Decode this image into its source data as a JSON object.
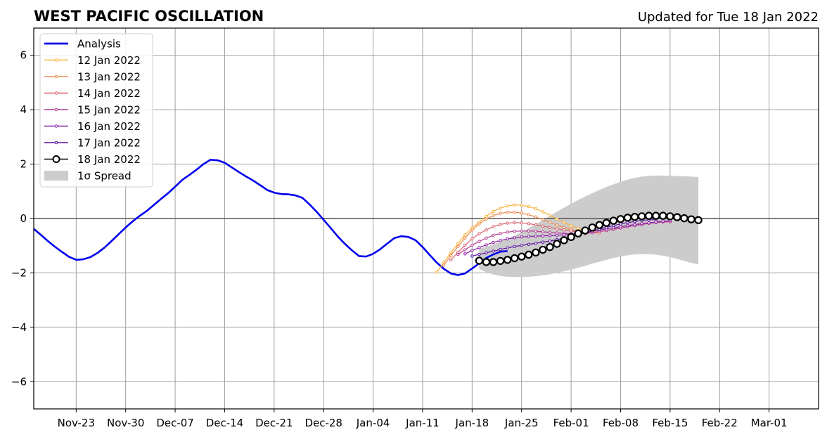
{
  "header": {
    "title": "WEST PACIFIC OSCILLATION",
    "updated": "Updated for Tue 18 Jan 2022"
  },
  "chart_data": {
    "type": "line",
    "title": "WEST PACIFIC OSCILLATION",
    "subtitle": "Updated for Tue 18 Jan 2022",
    "x_unit": "date",
    "xlim": [
      "2021-11-17",
      "2022-03-08"
    ],
    "ylim": [
      -7,
      7
    ],
    "grid": true,
    "legend_position": "top-left",
    "x_ticks": [
      {
        "date": "2021-11-23",
        "label": "Nov-23"
      },
      {
        "date": "2021-11-30",
        "label": "Nov-30"
      },
      {
        "date": "2021-12-07",
        "label": "Dec-07"
      },
      {
        "date": "2021-12-14",
        "label": "Dec-14"
      },
      {
        "date": "2021-12-21",
        "label": "Dec-21"
      },
      {
        "date": "2021-12-28",
        "label": "Dec-28"
      },
      {
        "date": "2022-01-04",
        "label": "Jan-04"
      },
      {
        "date": "2022-01-11",
        "label": "Jan-11"
      },
      {
        "date": "2022-01-18",
        "label": "Jan-18"
      },
      {
        "date": "2022-01-25",
        "label": "Jan-25"
      },
      {
        "date": "2022-02-01",
        "label": "Feb-01"
      },
      {
        "date": "2022-02-08",
        "label": "Feb-08"
      },
      {
        "date": "2022-02-15",
        "label": "Feb-15"
      },
      {
        "date": "2022-02-22",
        "label": "Feb-22"
      },
      {
        "date": "2022-03-01",
        "label": "Mar-01"
      }
    ],
    "y_ticks": [
      {
        "value": 6,
        "label": "6"
      },
      {
        "value": 4,
        "label": "4"
      },
      {
        "value": 2,
        "label": "2"
      },
      {
        "value": 0,
        "label": "0"
      },
      {
        "value": -2,
        "label": "−2"
      },
      {
        "value": -4,
        "label": "−4"
      },
      {
        "value": -6,
        "label": "−6"
      }
    ],
    "analysis": {
      "name": "Analysis",
      "color": "#0000ee",
      "start": "2021-11-17",
      "values": [
        -0.38,
        -0.6,
        -0.83,
        -1.04,
        -1.23,
        -1.41,
        -1.52,
        -1.5,
        -1.42,
        -1.27,
        -1.07,
        -0.83,
        -0.58,
        -0.33,
        -0.1,
        0.1,
        0.28,
        0.5,
        0.72,
        0.93,
        1.17,
        1.42,
        1.6,
        1.79,
        2.0,
        2.16,
        2.14,
        2.05,
        1.88,
        1.71,
        1.55,
        1.4,
        1.23,
        1.05,
        0.95,
        0.9,
        0.89,
        0.85,
        0.76,
        0.52,
        0.25,
        -0.05,
        -0.35,
        -0.66,
        -0.93,
        -1.17,
        -1.38,
        -1.4,
        -1.3,
        -1.13,
        -0.92,
        -0.72,
        -0.65,
        -0.68,
        -0.8,
        -1.05,
        -1.34,
        -1.62,
        -1.85,
        -2.02,
        -2.08,
        -2.02,
        -1.84,
        -1.65,
        -1.45,
        -1.32,
        -1.22,
        -1.2
      ]
    },
    "forecasts": [
      {
        "name": "12 Jan 2022",
        "color": "#f9b13b",
        "start": "2022-01-13",
        "values": [
          -1.97,
          -1.62,
          -1.25,
          -0.92,
          -0.6,
          -0.35,
          -0.13,
          0.08,
          0.26,
          0.38,
          0.46,
          0.5,
          0.49,
          0.44,
          0.36,
          0.25,
          0.12,
          -0.02,
          -0.15,
          -0.27,
          -0.36,
          -0.43,
          -0.48,
          -0.5
        ]
      },
      {
        "name": "13 Jan 2022",
        "color": "#ed8a4e",
        "start": "2022-01-14",
        "values": [
          -1.72,
          -1.36,
          -1.03,
          -0.72,
          -0.43,
          -0.2,
          -0.02,
          0.11,
          0.19,
          0.23,
          0.23,
          0.2,
          0.14,
          0.06,
          -0.04,
          -0.14,
          -0.24,
          -0.33,
          -0.4,
          -0.46,
          -0.5,
          -0.52,
          -0.53
        ]
      },
      {
        "name": "14 Jan 2022",
        "color": "#d96069",
        "start": "2022-01-15",
        "values": [
          -1.52,
          -1.24,
          -0.98,
          -0.75,
          -0.56,
          -0.42,
          -0.3,
          -0.22,
          -0.17,
          -0.15,
          -0.16,
          -0.19,
          -0.23,
          -0.28,
          -0.33,
          -0.38,
          -0.42,
          -0.46,
          -0.49,
          -0.5,
          -0.5,
          -0.48,
          -0.44,
          -0.4,
          -0.35
        ]
      },
      {
        "name": "15 Jan 2022",
        "color": "#b43c91",
        "start": "2022-01-16",
        "values": [
          -1.32,
          -1.15,
          -0.98,
          -0.84,
          -0.72,
          -0.62,
          -0.55,
          -0.5,
          -0.47,
          -0.46,
          -0.46,
          -0.47,
          -0.49,
          -0.51,
          -0.53,
          -0.55,
          -0.56,
          -0.56,
          -0.55,
          -0.52,
          -0.48,
          -0.44,
          -0.39,
          -0.35,
          -0.3,
          -0.26,
          -0.22,
          -0.18,
          -0.15,
          -0.13,
          -0.12
        ]
      },
      {
        "name": "16 Jan 2022",
        "color": "#8a1fa6",
        "start": "2022-01-17",
        "values": [
          -1.3,
          -1.18,
          -1.07,
          -0.97,
          -0.88,
          -0.81,
          -0.75,
          -0.71,
          -0.68,
          -0.66,
          -0.65,
          -0.64,
          -0.63,
          -0.62,
          -0.6,
          -0.57,
          -0.54,
          -0.5,
          -0.46,
          -0.42,
          -0.38,
          -0.34,
          -0.3,
          -0.26,
          -0.22,
          -0.19,
          -0.16,
          -0.13,
          -0.1,
          -0.08
        ]
      },
      {
        "name": "17 Jan 2022",
        "color": "#54119d",
        "start": "2022-01-18",
        "values": [
          -1.38,
          -1.32,
          -1.26,
          -1.2,
          -1.14,
          -1.08,
          -1.03,
          -0.99,
          -0.95,
          -0.91,
          -0.87,
          -0.83,
          -0.78,
          -0.73,
          -0.67,
          -0.6,
          -0.53,
          -0.46,
          -0.39,
          -0.32,
          -0.26,
          -0.2,
          -0.15,
          -0.11,
          -0.07,
          -0.05,
          -0.04
        ]
      },
      {
        "name": "18 Jan 2022",
        "color": "#000000",
        "marker": "open-circle",
        "start": "2022-01-19",
        "values": [
          -1.55,
          -1.6,
          -1.6,
          -1.56,
          -1.52,
          -1.46,
          -1.4,
          -1.33,
          -1.25,
          -1.15,
          -1.05,
          -0.93,
          -0.8,
          -0.68,
          -0.55,
          -0.44,
          -0.33,
          -0.24,
          -0.16,
          -0.08,
          -0.02,
          0.03,
          0.06,
          0.08,
          0.1,
          0.1,
          0.1,
          0.08,
          0.05,
          0.01,
          -0.03,
          -0.06
        ]
      }
    ],
    "spread": {
      "name": "1σ Spread",
      "color": "#cccccc",
      "start": "2022-01-19",
      "upper": [
        -1.1,
        -1.05,
        -0.95,
        -0.85,
        -0.75,
        -0.63,
        -0.5,
        -0.36,
        -0.21,
        -0.06,
        0.1,
        0.25,
        0.4,
        0.54,
        0.68,
        0.81,
        0.93,
        1.05,
        1.16,
        1.26,
        1.35,
        1.43,
        1.49,
        1.54,
        1.57,
        1.58,
        1.58,
        1.57,
        1.56,
        1.55,
        1.54,
        1.52
      ],
      "lower": [
        -1.86,
        -1.97,
        -2.06,
        -2.11,
        -2.14,
        -2.15,
        -2.15,
        -2.14,
        -2.12,
        -2.09,
        -2.05,
        -2.0,
        -1.94,
        -1.88,
        -1.81,
        -1.74,
        -1.66,
        -1.59,
        -1.52,
        -1.45,
        -1.4,
        -1.35,
        -1.32,
        -1.31,
        -1.31,
        -1.33,
        -1.37,
        -1.42,
        -1.49,
        -1.56,
        -1.63,
        -1.69
      ]
    }
  }
}
